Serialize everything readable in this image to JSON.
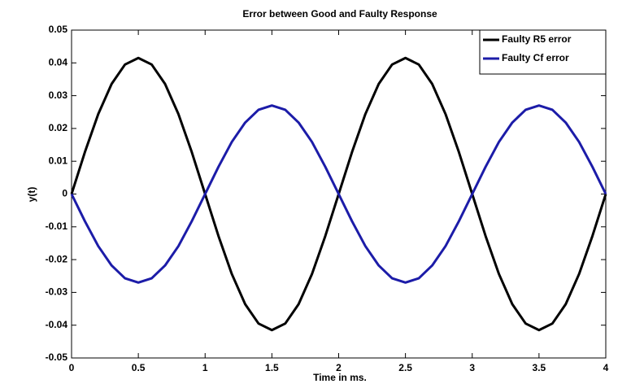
{
  "chart_data": {
    "type": "line",
    "title": "Error between Good and Faulty Response",
    "xlabel": "Time in ms.",
    "ylabel": "y(t)",
    "x": [
      0,
      0.1,
      0.2,
      0.3,
      0.4,
      0.5,
      0.6,
      0.7,
      0.8,
      0.9,
      1,
      1.1,
      1.2,
      1.3,
      1.4,
      1.5,
      1.6,
      1.7,
      1.8,
      1.9,
      2,
      2.1,
      2.2,
      2.3,
      2.4,
      2.5,
      2.6,
      2.7,
      2.8,
      2.9,
      3,
      3.1,
      3.2,
      3.3,
      3.4,
      3.5,
      3.6,
      3.7,
      3.8,
      3.9,
      4
    ],
    "series": [
      {
        "name": "Faulty R5 error",
        "color": "#000000",
        "values": [
          0,
          0.0128,
          0.0244,
          0.0336,
          0.0395,
          0.0415,
          0.0395,
          0.0336,
          0.0244,
          0.0128,
          0,
          -0.0128,
          -0.0244,
          -0.0336,
          -0.0395,
          -0.0415,
          -0.0395,
          -0.0336,
          -0.0244,
          -0.0128,
          0,
          0.0128,
          0.0244,
          0.0336,
          0.0395,
          0.0415,
          0.0395,
          0.0336,
          0.0244,
          0.0128,
          0,
          -0.0128,
          -0.0244,
          -0.0336,
          -0.0395,
          -0.0415,
          -0.0395,
          -0.0336,
          -0.0244,
          -0.0128,
          0
        ]
      },
      {
        "name": "Faulty Cf error",
        "color": "#1c1ca8",
        "values": [
          0,
          -0.0083,
          -0.0159,
          -0.0218,
          -0.0257,
          -0.027,
          -0.0257,
          -0.0218,
          -0.0159,
          -0.0083,
          0,
          0.0083,
          0.0159,
          0.0218,
          0.0257,
          0.027,
          0.0257,
          0.0218,
          0.0159,
          0.0083,
          0,
          -0.0083,
          -0.0159,
          -0.0218,
          -0.0257,
          -0.027,
          -0.0257,
          -0.0218,
          -0.0159,
          -0.0083,
          0,
          0.0083,
          0.0159,
          0.0218,
          0.0257,
          0.027,
          0.0257,
          0.0218,
          0.0159,
          0.0083,
          0
        ]
      }
    ],
    "xlim": [
      0,
      4
    ],
    "xticks": [
      0,
      0.5,
      1,
      1.5,
      2,
      2.5,
      3,
      3.5,
      4
    ],
    "ylim": [
      -0.05,
      0.05
    ],
    "yticks": [
      -0.05,
      -0.04,
      -0.03,
      -0.02,
      -0.01,
      0,
      0.01,
      0.02,
      0.03,
      0.04,
      0.05
    ],
    "grid": false,
    "legend": "upper right"
  }
}
